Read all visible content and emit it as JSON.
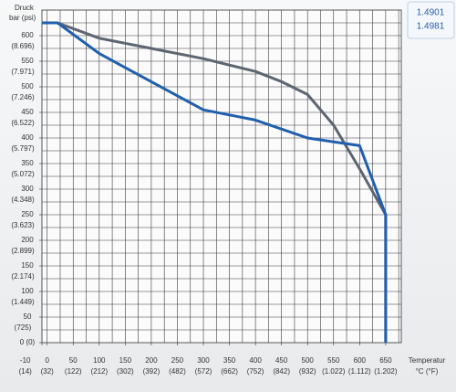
{
  "chart_data": {
    "type": "line",
    "y_title": [
      "Druck",
      "bar (psi)"
    ],
    "x_title": [
      "Temperatur",
      "°C (°F)"
    ],
    "xlim": [
      -10,
      680
    ],
    "ylim": [
      0,
      650
    ],
    "xticks": [
      -10,
      0,
      50,
      100,
      150,
      200,
      250,
      300,
      350,
      400,
      450,
      500,
      550,
      600,
      650
    ],
    "xtick_fahrenheit": [
      "(14)",
      "(32)",
      "(122)",
      "(212)",
      "(302)",
      "(392)",
      "(482)",
      "(572)",
      "(662)",
      "(752)",
      "(842)",
      "(932)",
      "(1.022)",
      "(1.112)",
      "(1.202)"
    ],
    "yticks": [
      {
        "value": 0,
        "label": "0 (0)"
      },
      50,
      100,
      150,
      200,
      250,
      300,
      350,
      400,
      450,
      500,
      550,
      600
    ],
    "ytick_psi": [
      "(725)",
      "(1.449)",
      "(2.174)",
      "(2.899)",
      "(3.623)",
      "(4.348)",
      "(5.072)",
      "(5.797)",
      "(6.522)",
      "(7.246)",
      "(7.971)",
      "(8.696)"
    ],
    "xgrid": [
      0,
      25,
      50,
      75,
      100,
      125,
      150,
      175,
      200,
      225,
      250,
      275,
      300,
      325,
      350,
      375,
      400,
      425,
      450,
      475,
      500,
      525,
      550,
      575,
      600,
      625,
      650,
      675
    ],
    "ygrid": [
      25,
      50,
      75,
      100,
      125,
      150,
      175,
      200,
      225,
      250,
      275,
      300,
      325,
      350,
      375,
      400,
      425,
      450,
      475,
      500,
      525,
      550,
      575,
      600,
      625
    ],
    "grid": true,
    "series": [
      {
        "name": "1.4901",
        "color": "#5d6670",
        "x": [
          -10,
          20,
          100,
          200,
          300,
          400,
          450,
          500,
          550,
          600,
          650,
          650
        ],
        "values": [
          625,
          625,
          595,
          575,
          555,
          530,
          510,
          485,
          425,
          340,
          250,
          0
        ]
      },
      {
        "name": "1.4981",
        "color": "#1f5fae",
        "x": [
          -10,
          20,
          100,
          200,
          300,
          400,
          500,
          600,
          650,
          650
        ],
        "values": [
          625,
          625,
          565,
          510,
          455,
          435,
          400,
          385,
          250,
          0
        ]
      }
    ]
  }
}
